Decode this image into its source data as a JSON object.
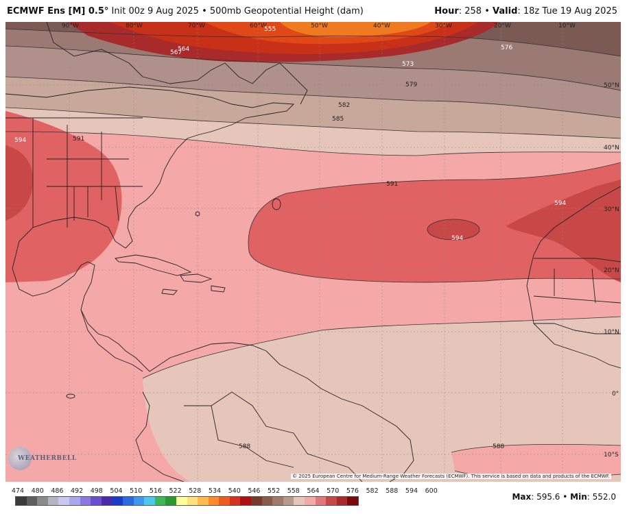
{
  "header": {
    "model": "ECMWF Ens [M] 0.5",
    "degree": "°",
    "init": "Init 00z 9 Aug 2025",
    "separator": "•",
    "product": "500mb Geopotential Height (dam)",
    "hour_label": "Hour",
    "hour_value": ": 258",
    "valid_label": "Valid",
    "valid_value": ": 18z Tue 19 Aug 2025"
  },
  "colorbar": {
    "ticks": [
      "474",
      "480",
      "486",
      "492",
      "498",
      "504",
      "510",
      "516",
      "522",
      "528",
      "534",
      "540",
      "546",
      "552",
      "558",
      "564",
      "570",
      "576",
      "582",
      "588",
      "594",
      "600"
    ],
    "colors": [
      "#3a3a3a",
      "#5e5e5e",
      "#8a8a8a",
      "#b4b4c4",
      "#c8c8f0",
      "#a8a8f0",
      "#8a7ae0",
      "#6a4ed0",
      "#4a2aa8",
      "#1a3ac8",
      "#2a6ae0",
      "#3a9af0",
      "#4ac8f0",
      "#3ab85a",
      "#2a9a30",
      "#ffff9a",
      "#ffe07a",
      "#ffba4a",
      "#ff8a2a",
      "#f05a1a",
      "#d8301a",
      "#b01010",
      "#7a3a2a",
      "#8a5a4a",
      "#a07a6a",
      "#b89a8a",
      "#e6c6ba",
      "#f4a8a8",
      "#e27878",
      "#c84848",
      "#a82a2a",
      "#7a0a0a"
    ]
  },
  "stats": {
    "max_label": "Max",
    "max_value": ": 595.6",
    "sep": "•",
    "min_label": "Min",
    "min_value": ": 552.0"
  },
  "credit": "© 2025 European Centre for Medium-Range Weather Forecasts (ECMWF). This service is based on data and products of the ECMWF.",
  "logo": "WEATHERBELL",
  "map": {
    "lon_labels": [
      "90°W",
      "80°W",
      "70°W",
      "60°W",
      "50°W",
      "40°W",
      "30°W",
      "20°W",
      "10°W"
    ],
    "lat_labels": [
      "50°N",
      "40°N",
      "30°N",
      "20°N",
      "10°N",
      "0°",
      "10°S"
    ],
    "contour_labels": [
      "555",
      "564",
      "567",
      "573",
      "576",
      "579",
      "582",
      "585",
      "591",
      "591",
      "594",
      "594",
      "594",
      "588",
      "588"
    ]
  }
}
